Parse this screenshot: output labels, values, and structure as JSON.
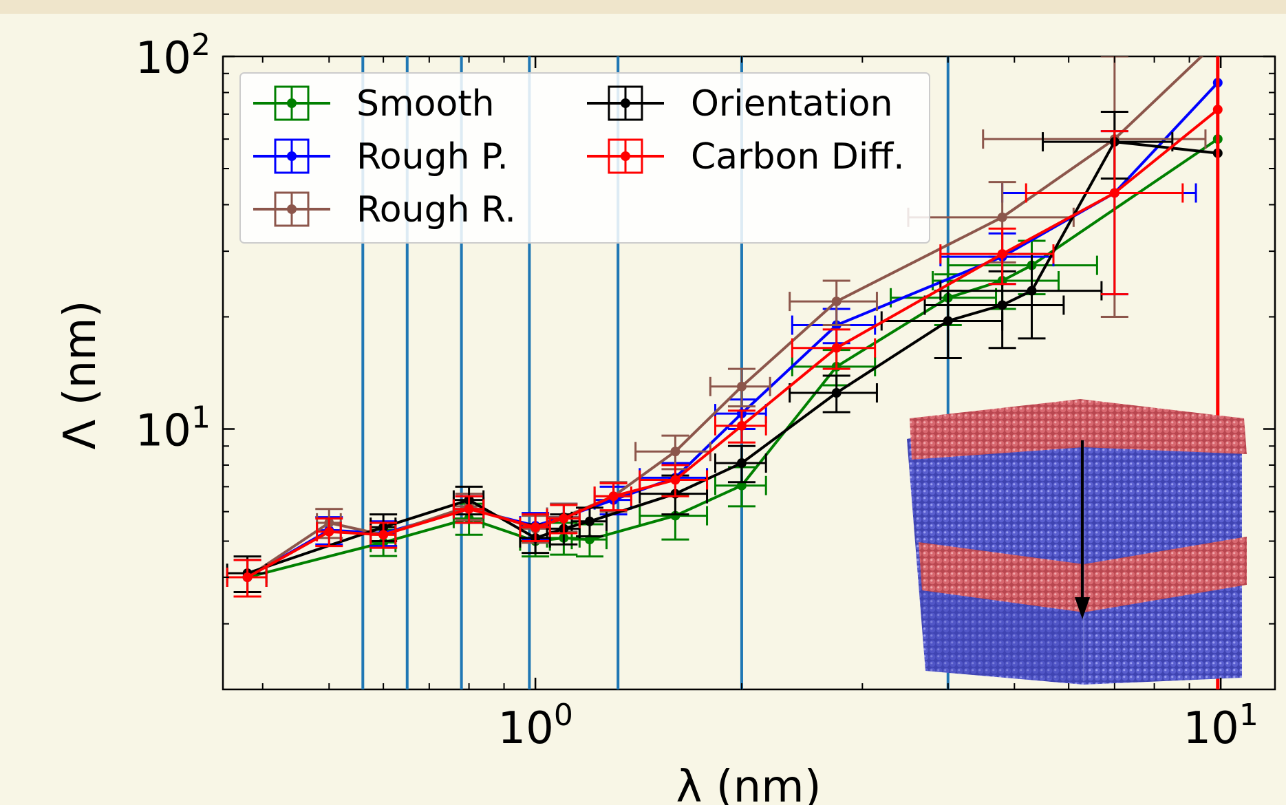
{
  "chart_data": {
    "type": "scatter",
    "xlabel": "λ (nm)",
    "ylabel": "Λ  (nm)",
    "xscale": "log",
    "yscale": "log",
    "xlim": [
      0.35,
      12.0
    ],
    "ylim": [
      2.0,
      100
    ],
    "xticks": [
      {
        "base": "10",
        "exp": "0",
        "value": 1
      },
      {
        "base": "10",
        "exp": "1",
        "value": 10
      }
    ],
    "yticks": [
      {
        "base": "10",
        "exp": "1",
        "value": 10
      },
      {
        "base": "10",
        "exp": "2",
        "value": 100
      }
    ],
    "grid": false,
    "legend_position": "upper-left",
    "vertical_lines": {
      "blue": {
        "color": "#1f77b4",
        "x": [
          0.56,
          0.65,
          0.78,
          0.98,
          1.32,
          2.0,
          4.0
        ]
      },
      "red": {
        "color": "#ff0000",
        "x": [
          9.9
        ]
      }
    },
    "series": [
      {
        "name": "Smooth",
        "color": "#008000",
        "points": [
          {
            "x": 0.38,
            "y": 4.0,
            "xerr": 0.025,
            "yerr": 0.45
          },
          {
            "x": 0.6,
            "y": 4.96,
            "xerr": 0.025,
            "yerr": 0.4
          },
          {
            "x": 0.8,
            "y": 5.75,
            "xerr": 0.04,
            "yerr": 0.55
          },
          {
            "x": 1.0,
            "y": 5.0,
            "xerr": 0.05,
            "yerr": 0.45
          },
          {
            "x": 1.1,
            "y": 5.1,
            "xerr": 0.06,
            "yerr": 0.5
          },
          {
            "x": 1.2,
            "y": 5.05,
            "xerr": 0.07,
            "yerr": 0.5
          },
          {
            "x": 1.6,
            "y": 5.85,
            "xerr": 0.18,
            "yerr": 0.8
          },
          {
            "x": 2.0,
            "y": 7.05,
            "xerr": 0.17,
            "yerr": 0.85
          },
          {
            "x": 2.75,
            "y": 14.7,
            "xerr": 0.38,
            "yerr": 1.6
          },
          {
            "x": 4.0,
            "y": 22.5,
            "xerr": 0.7,
            "yerr": 3.5
          },
          {
            "x": 4.8,
            "y": 25.0,
            "xerr": 1.0,
            "yerr": 4.0
          },
          {
            "x": 5.3,
            "y": 27.5,
            "xerr": 1.3,
            "yerr": 4.5
          },
          {
            "x": 9.9,
            "y": 60.0
          }
        ]
      },
      {
        "name": "Rough P.",
        "color": "#0000ff",
        "points": [
          {
            "x": 0.38,
            "y": 4.0,
            "xerr": 0.025,
            "yerr": 0.45
          },
          {
            "x": 0.5,
            "y": 5.35,
            "xerr": 0.02,
            "yerr": 0.45
          },
          {
            "x": 0.6,
            "y": 5.25,
            "xerr": 0.025,
            "yerr": 0.4
          },
          {
            "x": 0.8,
            "y": 6.1,
            "xerr": 0.04,
            "yerr": 0.5
          },
          {
            "x": 1.0,
            "y": 5.5,
            "xerr": 0.05,
            "yerr": 0.45
          },
          {
            "x": 1.1,
            "y": 5.8,
            "xerr": 0.06,
            "yerr": 0.5
          },
          {
            "x": 1.3,
            "y": 6.45,
            "xerr": 0.08,
            "yerr": 0.55
          },
          {
            "x": 1.6,
            "y": 7.4,
            "xerr": 0.18,
            "yerr": 0.7
          },
          {
            "x": 2.0,
            "y": 11.0,
            "xerr": 0.17,
            "yerr": 1.0
          },
          {
            "x": 2.75,
            "y": 19.0,
            "xerr": 0.38,
            "yerr": 2.0
          },
          {
            "x": 4.8,
            "y": 29.0,
            "xerr": 0.9,
            "yerr": 4.5
          },
          {
            "x": 7.0,
            "y": 43.0,
            "xerr": 2.2,
            "yerr": 20.0
          },
          {
            "x": 9.9,
            "y": 85.0
          }
        ]
      },
      {
        "name": "Rough R.",
        "color": "#8c564b",
        "points": [
          {
            "x": 0.38,
            "y": 4.0,
            "xerr": 0.025,
            "yerr": 0.45
          },
          {
            "x": 0.5,
            "y": 5.6,
            "xerr": 0.02,
            "yerr": 0.5
          },
          {
            "x": 0.6,
            "y": 5.2,
            "xerr": 0.025,
            "yerr": 0.4
          },
          {
            "x": 0.8,
            "y": 6.2,
            "xerr": 0.04,
            "yerr": 0.5
          },
          {
            "x": 1.0,
            "y": 5.4,
            "xerr": 0.05,
            "yerr": 0.45
          },
          {
            "x": 1.1,
            "y": 5.8,
            "xerr": 0.06,
            "yerr": 0.5
          },
          {
            "x": 1.3,
            "y": 6.6,
            "xerr": 0.08,
            "yerr": 0.6
          },
          {
            "x": 1.6,
            "y": 8.7,
            "xerr": 0.2,
            "yerr": 0.9
          },
          {
            "x": 2.0,
            "y": 13.0,
            "xerr": 0.2,
            "yerr": 1.5
          },
          {
            "x": 2.75,
            "y": 22.0,
            "xerr": 0.4,
            "yerr": 3.0
          },
          {
            "x": 4.8,
            "y": 37.0,
            "xerr": 1.3,
            "yerr": 9.0
          },
          {
            "x": 7.0,
            "y": 60.0,
            "xerr": 2.5,
            "yerr": 40.0
          },
          {
            "x": 9.9,
            "y": 110.0
          }
        ]
      },
      {
        "name": "Orientation",
        "color": "#000000",
        "points": [
          {
            "x": 0.38,
            "y": 4.1,
            "xerr": 0.025,
            "yerr": 0.45
          },
          {
            "x": 0.6,
            "y": 5.45,
            "xerr": 0.025,
            "yerr": 0.45
          },
          {
            "x": 0.8,
            "y": 6.45,
            "xerr": 0.04,
            "yerr": 0.55
          },
          {
            "x": 1.0,
            "y": 5.1,
            "xerr": 0.05,
            "yerr": 0.45
          },
          {
            "x": 1.1,
            "y": 5.4,
            "xerr": 0.06,
            "yerr": 0.5
          },
          {
            "x": 1.2,
            "y": 5.65,
            "xerr": 0.07,
            "yerr": 0.5
          },
          {
            "x": 1.6,
            "y": 6.7,
            "xerr": 0.18,
            "yerr": 0.8
          },
          {
            "x": 2.0,
            "y": 8.1,
            "xerr": 0.17,
            "yerr": 0.9
          },
          {
            "x": 2.75,
            "y": 12.5,
            "xerr": 0.4,
            "yerr": 1.4
          },
          {
            "x": 4.0,
            "y": 19.5,
            "xerr": 0.8,
            "yerr": 4.0
          },
          {
            "x": 4.8,
            "y": 21.5,
            "xerr": 1.1,
            "yerr": 5.0
          },
          {
            "x": 5.3,
            "y": 23.5,
            "xerr": 1.4,
            "yerr": 6.0
          },
          {
            "x": 7.0,
            "y": 59.0,
            "xerr": 1.5,
            "yerr": 12.0
          },
          {
            "x": 9.9,
            "y": 55.0
          }
        ]
      },
      {
        "name": "Carbon Diff.",
        "color": "#ff0000",
        "points": [
          {
            "x": 0.38,
            "y": 4.0,
            "xerr": 0.025,
            "yerr": 0.45
          },
          {
            "x": 0.5,
            "y": 5.3,
            "xerr": 0.02,
            "yerr": 0.45
          },
          {
            "x": 0.6,
            "y": 5.2,
            "xerr": 0.025,
            "yerr": 0.4
          },
          {
            "x": 0.8,
            "y": 6.1,
            "xerr": 0.04,
            "yerr": 0.5
          },
          {
            "x": 1.0,
            "y": 5.45,
            "xerr": 0.05,
            "yerr": 0.45
          },
          {
            "x": 1.1,
            "y": 5.75,
            "xerr": 0.06,
            "yerr": 0.5
          },
          {
            "x": 1.3,
            "y": 6.6,
            "xerr": 0.08,
            "yerr": 0.55
          },
          {
            "x": 1.6,
            "y": 7.3,
            "xerr": 0.18,
            "yerr": 0.7
          },
          {
            "x": 2.0,
            "y": 10.2,
            "xerr": 0.17,
            "yerr": 1.0
          },
          {
            "x": 2.75,
            "y": 16.5,
            "xerr": 0.38,
            "yerr": 2.0
          },
          {
            "x": 4.8,
            "y": 29.5,
            "xerr": 0.9,
            "yerr": 5.0
          },
          {
            "x": 7.0,
            "y": 43.0,
            "xerr": 1.8,
            "yerr": 20.0
          },
          {
            "x": 9.9,
            "y": 72.0
          }
        ]
      }
    ]
  },
  "inset": {
    "colors": {
      "crust": "#c8555e",
      "bulk": "#4a4fbd",
      "arrow": "#000000"
    }
  }
}
